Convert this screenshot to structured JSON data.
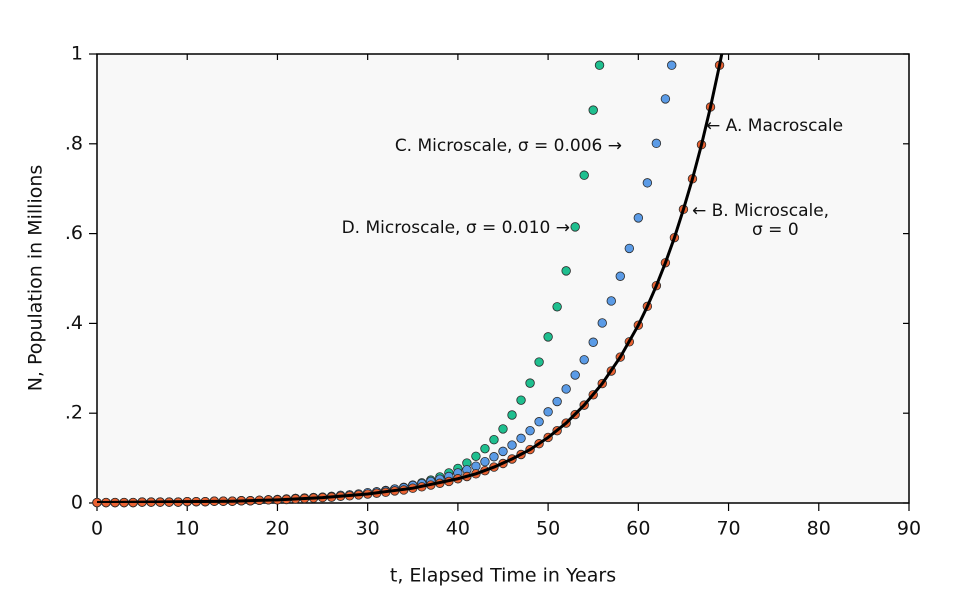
{
  "chart_data": {
    "type": "scatter",
    "xlabel": "t, Elapsed Time in Years",
    "ylabel": "N, Population in Millions",
    "xlim": [
      0,
      90
    ],
    "ylim": [
      0,
      1
    ],
    "xticks": [
      0,
      10,
      20,
      30,
      40,
      50,
      60,
      70,
      80,
      90
    ],
    "yticks": [
      0,
      {
        "value": 0.2,
        "label": ".2"
      },
      {
        "value": 0.4,
        "label": ".4"
      },
      {
        "value": 0.6,
        "label": ".6"
      },
      {
        "value": 0.8,
        "label": ".8"
      },
      1
    ],
    "series": [
      {
        "kind": "points",
        "color": "#1fbf8f",
        "x": [
          0,
          1,
          2,
          3,
          4,
          5,
          6,
          7,
          8,
          9,
          10,
          11,
          12,
          13,
          14,
          15,
          16,
          17,
          18,
          19,
          20,
          21,
          22,
          23,
          24,
          25,
          26,
          27,
          28,
          29,
          30,
          31,
          32,
          33,
          34,
          35,
          36,
          37,
          38,
          39,
          40,
          41,
          42,
          43,
          44,
          45,
          46,
          47,
          48,
          49,
          50,
          51,
          52,
          53,
          54,
          55,
          55.7
        ],
        "values": [
          0.001,
          0.001,
          0.001,
          0.001,
          0.001,
          0.002,
          0.002,
          0.002,
          0.002,
          0.002,
          0.003,
          0.003,
          0.003,
          0.004,
          0.004,
          0.004,
          0.005,
          0.005,
          0.006,
          0.007,
          0.008,
          0.009,
          0.01,
          0.011,
          0.012,
          0.013,
          0.015,
          0.016,
          0.018,
          0.02,
          0.022,
          0.025,
          0.028,
          0.031,
          0.035,
          0.04,
          0.045,
          0.051,
          0.058,
          0.067,
          0.077,
          0.089,
          0.104,
          0.121,
          0.141,
          0.165,
          0.196,
          0.229,
          0.267,
          0.314,
          0.37,
          0.437,
          0.517,
          0.615,
          0.73,
          0.875,
          0.975
        ]
      },
      {
        "kind": "points",
        "color": "#5b9be6",
        "x": [
          0,
          1,
          2,
          3,
          4,
          5,
          6,
          7,
          8,
          9,
          10,
          11,
          12,
          13,
          14,
          15,
          16,
          17,
          18,
          19,
          20,
          21,
          22,
          23,
          24,
          25,
          26,
          27,
          28,
          29,
          30,
          31,
          32,
          33,
          34,
          35,
          36,
          37,
          38,
          39,
          40,
          41,
          42,
          43,
          44,
          45,
          46,
          47,
          48,
          49,
          50,
          51,
          52,
          53,
          54,
          55,
          56,
          57,
          58,
          59,
          60,
          61,
          62,
          63,
          63.7
        ],
        "values": [
          0.001,
          0.001,
          0.001,
          0.001,
          0.001,
          0.002,
          0.002,
          0.002,
          0.002,
          0.002,
          0.003,
          0.003,
          0.003,
          0.004,
          0.004,
          0.004,
          0.005,
          0.005,
          0.006,
          0.007,
          0.007,
          0.008,
          0.01,
          0.011,
          0.012,
          0.013,
          0.014,
          0.017,
          0.018,
          0.02,
          0.023,
          0.025,
          0.027,
          0.031,
          0.034,
          0.039,
          0.043,
          0.048,
          0.053,
          0.059,
          0.067,
          0.074,
          0.082,
          0.092,
          0.103,
          0.115,
          0.129,
          0.144,
          0.161,
          0.181,
          0.203,
          0.226,
          0.254,
          0.285,
          0.319,
          0.358,
          0.401,
          0.45,
          0.505,
          0.567,
          0.635,
          0.713,
          0.801,
          0.9,
          0.975
        ]
      },
      {
        "kind": "points",
        "color": "#ea6232",
        "x": [
          0,
          1,
          2,
          3,
          4,
          5,
          6,
          7,
          8,
          9,
          10,
          11,
          12,
          13,
          14,
          15,
          16,
          17,
          18,
          19,
          20,
          21,
          22,
          23,
          24,
          25,
          26,
          27,
          28,
          29,
          30,
          31,
          32,
          33,
          34,
          35,
          36,
          37,
          38,
          39,
          40,
          41,
          42,
          43,
          44,
          45,
          46,
          47,
          48,
          49,
          50,
          51,
          52,
          53,
          54,
          55,
          56,
          57,
          58,
          59,
          60,
          61,
          62,
          63,
          64,
          65,
          66,
          67,
          68,
          69
        ],
        "values": [
          0.001,
          0.001,
          0.001,
          0.001,
          0.001,
          0.002,
          0.002,
          0.002,
          0.002,
          0.002,
          0.003,
          0.003,
          0.003,
          0.004,
          0.004,
          0.004,
          0.005,
          0.005,
          0.006,
          0.007,
          0.007,
          0.008,
          0.009,
          0.01,
          0.011,
          0.012,
          0.013,
          0.015,
          0.016,
          0.018,
          0.02,
          0.022,
          0.024,
          0.027,
          0.029,
          0.033,
          0.036,
          0.04,
          0.044,
          0.048,
          0.054,
          0.059,
          0.065,
          0.072,
          0.08,
          0.088,
          0.098,
          0.108,
          0.119,
          0.132,
          0.146,
          0.161,
          0.178,
          0.197,
          0.218,
          0.241,
          0.266,
          0.294,
          0.325,
          0.359,
          0.396,
          0.438,
          0.484,
          0.535,
          0.591,
          0.654,
          0.722,
          0.798,
          0.882,
          0.975
        ]
      },
      {
        "kind": "line",
        "color": "#000000",
        "x": [
          0,
          5,
          10,
          15,
          20,
          25,
          30,
          35,
          40,
          42,
          44,
          46,
          48,
          50,
          52,
          54,
          56,
          58,
          60,
          61,
          62,
          63,
          64,
          65,
          66,
          67,
          68,
          69,
          69.25
        ],
        "values": [
          0.001,
          0.002,
          0.003,
          0.004,
          0.007,
          0.012,
          0.02,
          0.033,
          0.054,
          0.065,
          0.08,
          0.098,
          0.119,
          0.146,
          0.178,
          0.218,
          0.266,
          0.325,
          0.396,
          0.438,
          0.484,
          0.535,
          0.591,
          0.654,
          0.722,
          0.798,
          0.882,
          0.975,
          1
        ]
      }
    ],
    "annotations": [
      {
        "lines": [
          "C. Microscale, σ = 0.006 →"
        ],
        "color": "#2a6fb8"
      },
      {
        "lines": [
          "D. Microscale, σ = 0.010 →"
        ],
        "color": "#18a07a"
      },
      {
        "lines": [
          "← A. Macroscale"
        ],
        "color": "#111111"
      },
      {
        "lines": [
          "← B. Microscale,",
          "σ = 0"
        ],
        "color": "#c8461e"
      }
    ]
  }
}
